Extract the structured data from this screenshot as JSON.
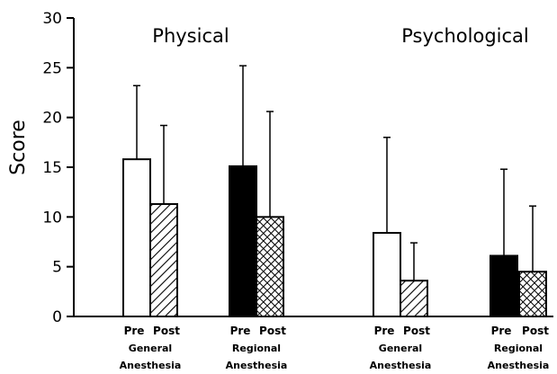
{
  "chart_data": {
    "type": "bar",
    "ylabel": "Score",
    "ylim": [
      0,
      30
    ],
    "yticks": [
      0,
      5,
      10,
      15,
      20,
      25,
      30
    ],
    "grid": false,
    "error_bars": "upper only",
    "panels": [
      {
        "title": "Physical",
        "groups": [
          {
            "label": [
              "General",
              "Anesthesia"
            ],
            "bars": [
              {
                "condition": "Pre",
                "value": 15.8,
                "error_top": 23.2,
                "fill": "white"
              },
              {
                "condition": "Post",
                "value": 11.3,
                "error_top": 19.2,
                "fill": "diagonal-hatch"
              }
            ]
          },
          {
            "label": [
              "Regional",
              "Anesthesia"
            ],
            "bars": [
              {
                "condition": "Pre",
                "value": 15.1,
                "error_top": 25.2,
                "fill": "black"
              },
              {
                "condition": "Post",
                "value": 10.0,
                "error_top": 20.6,
                "fill": "cross-hatch"
              }
            ]
          }
        ]
      },
      {
        "title": "Psychological",
        "groups": [
          {
            "label": [
              "General",
              "Anesthesia"
            ],
            "bars": [
              {
                "condition": "Pre",
                "value": 8.4,
                "error_top": 18.0,
                "fill": "white"
              },
              {
                "condition": "Post",
                "value": 3.6,
                "error_top": 7.4,
                "fill": "diagonal-hatch"
              }
            ]
          },
          {
            "label": [
              "Regional",
              "Anesthesia"
            ],
            "bars": [
              {
                "condition": "Pre",
                "value": 6.1,
                "error_top": 14.8,
                "fill": "black"
              },
              {
                "condition": "Post",
                "value": 4.5,
                "error_top": 11.1,
                "fill": "cross-hatch"
              }
            ]
          }
        ]
      }
    ]
  }
}
